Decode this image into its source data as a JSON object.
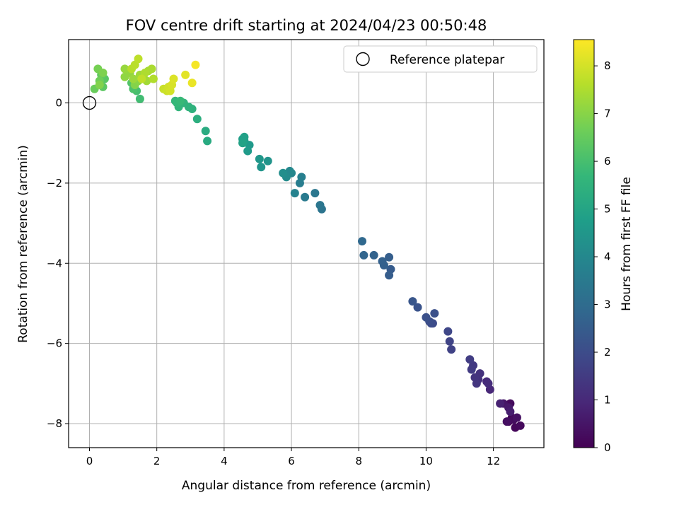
{
  "chart_data": {
    "type": "scatter",
    "title": "FOV centre drift starting at 2024/04/23 00:50:48",
    "xlabel": "Angular distance from reference (arcmin)",
    "ylabel": "Rotation from reference (arcmin)",
    "xlim": [
      -0.62,
      13.5
    ],
    "ylim": [
      -8.6,
      1.58
    ],
    "xticks": [
      0,
      2,
      4,
      6,
      8,
      10,
      12
    ],
    "yticks": [
      0,
      -2,
      -4,
      -6,
      -8
    ],
    "grid": true,
    "legend": {
      "placement": "upper-right",
      "entries": [
        "Reference platepar"
      ]
    },
    "reference_point": {
      "x": 0,
      "y": 0
    },
    "colorbar": {
      "label": "Hours from first FF file",
      "range": [
        0,
        8.55
      ],
      "ticks": [
        0,
        1,
        2,
        3,
        4,
        5,
        6,
        7,
        8
      ],
      "colormap": "viridis"
    },
    "series": [
      {
        "points": [
          [
            12.45,
            -7.95,
            0.05
          ],
          [
            12.55,
            -7.85,
            0.1
          ],
          [
            12.65,
            -8.1,
            0.15
          ],
          [
            12.8,
            -8.05,
            0.2
          ],
          [
            12.5,
            -7.5,
            0.25
          ],
          [
            12.6,
            -7.9,
            0.3
          ],
          [
            12.4,
            -7.95,
            0.35
          ],
          [
            12.7,
            -7.85,
            0.4
          ],
          [
            12.3,
            -7.5,
            0.5
          ],
          [
            12.45,
            -7.6,
            0.6
          ],
          [
            12.5,
            -7.7,
            0.7
          ],
          [
            12.2,
            -7.5,
            0.8
          ],
          [
            11.9,
            -7.15,
            0.95
          ],
          [
            11.8,
            -6.95,
            1.05
          ],
          [
            11.85,
            -7.0,
            1.1
          ],
          [
            11.55,
            -6.9,
            1.2
          ],
          [
            11.6,
            -6.75,
            1.25
          ],
          [
            11.45,
            -6.85,
            1.3
          ],
          [
            11.5,
            -7.0,
            1.35
          ],
          [
            11.4,
            -6.55,
            1.45
          ],
          [
            11.35,
            -6.65,
            1.5
          ],
          [
            11.3,
            -6.4,
            1.55
          ],
          [
            10.75,
            -6.15,
            1.7
          ],
          [
            10.7,
            -5.95,
            1.75
          ],
          [
            10.65,
            -5.7,
            1.85
          ],
          [
            10.2,
            -5.5,
            1.95
          ],
          [
            10.15,
            -5.5,
            2.0
          ],
          [
            10.1,
            -5.45,
            2.05
          ],
          [
            10.25,
            -5.25,
            2.1
          ],
          [
            10.0,
            -5.35,
            2.15
          ],
          [
            9.75,
            -5.1,
            2.2
          ],
          [
            9.6,
            -4.95,
            2.3
          ],
          [
            8.95,
            -4.15,
            2.45
          ],
          [
            8.9,
            -4.3,
            2.5
          ],
          [
            8.9,
            -3.85,
            2.55
          ],
          [
            8.75,
            -4.05,
            2.6
          ],
          [
            8.7,
            -3.95,
            2.65
          ],
          [
            8.45,
            -3.8,
            2.7
          ],
          [
            8.15,
            -3.8,
            2.8
          ],
          [
            8.1,
            -3.45,
            2.9
          ],
          [
            6.9,
            -2.65,
            3.3
          ],
          [
            6.85,
            -2.55,
            3.35
          ],
          [
            6.7,
            -2.25,
            3.4
          ],
          [
            6.4,
            -2.35,
            3.5
          ],
          [
            6.25,
            -2.0,
            3.6
          ],
          [
            6.3,
            -1.85,
            3.7
          ],
          [
            6.1,
            -2.25,
            3.8
          ],
          [
            6.0,
            -1.75,
            3.9
          ],
          [
            5.95,
            -1.7,
            4.0
          ],
          [
            5.85,
            -1.85,
            4.1
          ],
          [
            5.75,
            -1.75,
            4.2
          ],
          [
            5.3,
            -1.45,
            4.4
          ],
          [
            5.1,
            -1.6,
            4.45
          ],
          [
            5.05,
            -1.4,
            4.5
          ],
          [
            4.75,
            -1.05,
            4.6
          ],
          [
            4.7,
            -1.2,
            4.65
          ],
          [
            4.6,
            -0.95,
            4.75
          ],
          [
            4.55,
            -0.9,
            4.8
          ],
          [
            4.6,
            -0.85,
            4.85
          ],
          [
            4.55,
            -1.0,
            4.9
          ],
          [
            3.5,
            -0.95,
            5.2
          ],
          [
            3.45,
            -0.7,
            5.25
          ],
          [
            3.2,
            -0.4,
            5.35
          ],
          [
            3.05,
            -0.15,
            5.45
          ],
          [
            2.95,
            -0.1,
            5.5
          ],
          [
            2.8,
            0.0,
            5.55
          ],
          [
            2.65,
            -0.1,
            5.6
          ],
          [
            2.55,
            0.05,
            5.65
          ],
          [
            2.6,
            0.0,
            5.7
          ],
          [
            2.7,
            0.05,
            5.75
          ],
          [
            1.5,
            0.1,
            5.9
          ],
          [
            1.4,
            0.3,
            6.0
          ],
          [
            1.3,
            0.35,
            6.1
          ],
          [
            1.25,
            0.5,
            6.2
          ],
          [
            0.45,
            0.6,
            6.3
          ],
          [
            0.4,
            0.4,
            6.35
          ],
          [
            0.35,
            0.7,
            6.45
          ],
          [
            0.15,
            0.35,
            6.55
          ],
          [
            0.3,
            0.55,
            6.65
          ],
          [
            0.25,
            0.85,
            6.75
          ],
          [
            0.4,
            0.75,
            6.85
          ],
          [
            0.3,
            0.45,
            6.9
          ],
          [
            1.35,
            0.45,
            6.95
          ],
          [
            1.45,
            0.55,
            7.0
          ],
          [
            1.6,
            0.65,
            7.05
          ],
          [
            1.05,
            0.65,
            7.1
          ],
          [
            1.2,
            0.75,
            7.15
          ],
          [
            1.05,
            0.85,
            7.2
          ],
          [
            1.3,
            0.6,
            7.25
          ],
          [
            1.5,
            0.7,
            7.3
          ],
          [
            1.7,
            0.55,
            7.35
          ],
          [
            1.75,
            0.8,
            7.4
          ],
          [
            1.85,
            0.85,
            7.45
          ],
          [
            1.65,
            0.75,
            7.5
          ],
          [
            1.9,
            0.6,
            7.55
          ],
          [
            1.25,
            0.85,
            7.6
          ],
          [
            1.35,
            0.95,
            7.65
          ],
          [
            1.45,
            1.1,
            7.7
          ],
          [
            1.55,
            0.6,
            7.75
          ],
          [
            2.2,
            0.35,
            7.85
          ],
          [
            2.3,
            0.3,
            7.9
          ],
          [
            2.35,
            0.4,
            7.95
          ],
          [
            2.4,
            0.3,
            8.0
          ],
          [
            2.45,
            0.45,
            8.05
          ],
          [
            2.5,
            0.6,
            8.1
          ],
          [
            2.85,
            0.7,
            8.2
          ],
          [
            3.05,
            0.5,
            8.3
          ],
          [
            3.15,
            0.95,
            8.45
          ]
        ]
      }
    ]
  }
}
